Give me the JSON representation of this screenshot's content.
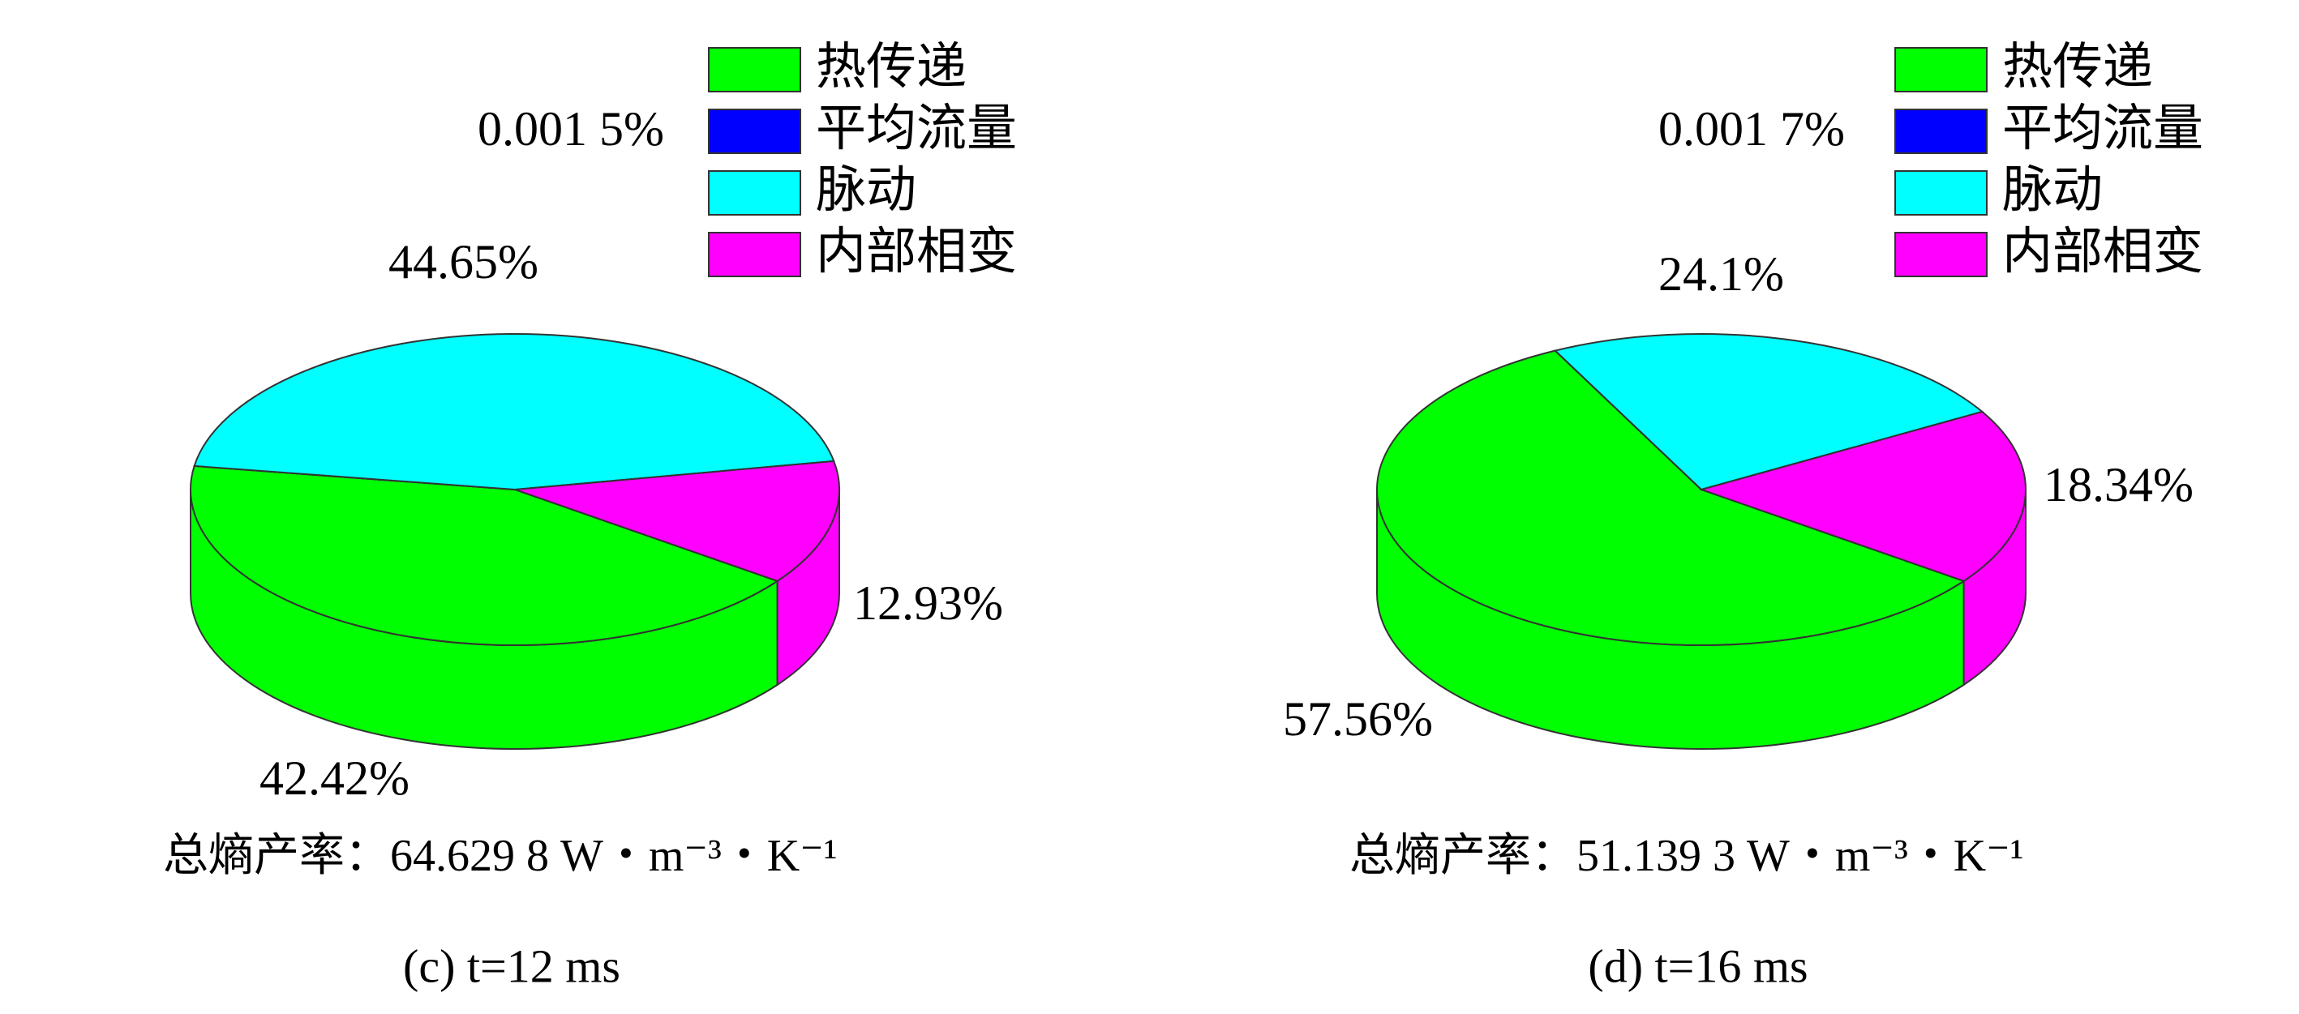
{
  "chart_data": [
    {
      "type": "pie",
      "categories": [
        "热传递",
        "平均流量",
        "脉动",
        "内部相变"
      ],
      "values": [
        42.42,
        0.0015,
        44.65,
        12.93
      ],
      "value_labels": [
        "42.42%",
        "0.001 5%",
        "44.65%",
        "12.93%"
      ],
      "colors": [
        "#00ff00",
        "#0000ff",
        "#00ffff",
        "#ff00ff"
      ],
      "subtitle": "总熵产率：64.629 8 W・m⁻³・K⁻¹",
      "caption": "(c) t=12 ms"
    },
    {
      "type": "pie",
      "categories": [
        "热传递",
        "平均流量",
        "脉动",
        "内部相变"
      ],
      "values": [
        57.56,
        0.0017,
        24.1,
        18.34
      ],
      "value_labels": [
        "57.56%",
        "0.001 7%",
        "24.1%",
        "18.34%"
      ],
      "colors": [
        "#00ff00",
        "#0000ff",
        "#00ffff",
        "#ff00ff"
      ],
      "subtitle": "总熵产率：51.139 3 W・m⁻³・K⁻¹",
      "caption": "(d) t=16 ms"
    }
  ]
}
